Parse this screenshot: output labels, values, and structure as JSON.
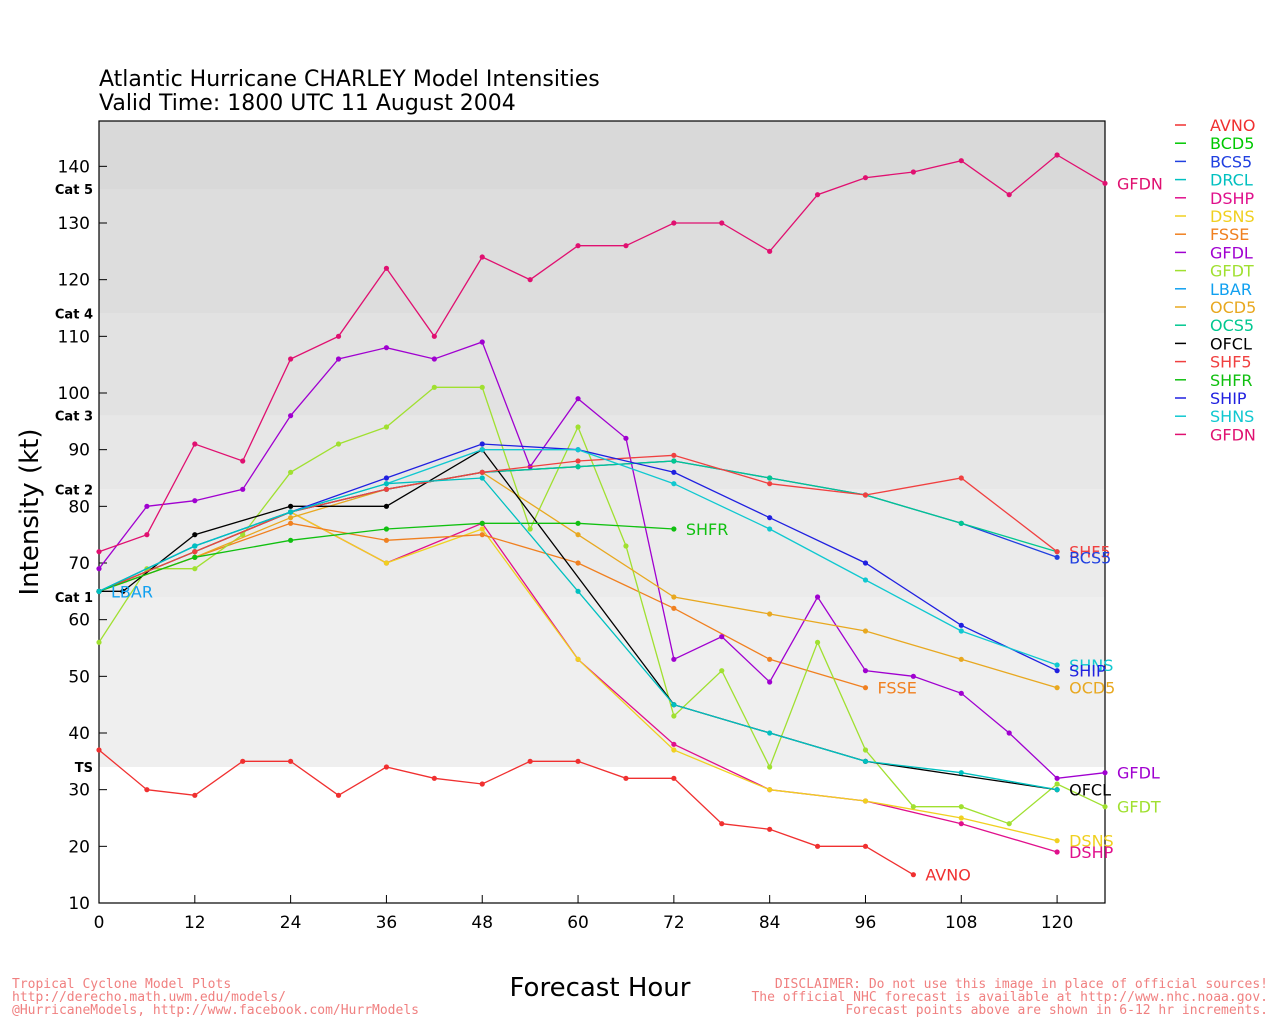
{
  "chart_data": {
    "type": "line",
    "title": "Atlantic Hurricane CHARLEY Model Intensities",
    "subtitle": "Valid Time: 1800 UTC 11 August 2004",
    "xlabel": "Forecast Hour",
    "ylabel": "Intensity (kt)",
    "xlim": [
      0,
      126
    ],
    "ylim": [
      10,
      148
    ],
    "xticks": [
      0,
      12,
      24,
      36,
      48,
      60,
      72,
      84,
      96,
      108,
      120
    ],
    "yticks": [
      10,
      20,
      30,
      40,
      50,
      60,
      70,
      80,
      90,
      100,
      110,
      120,
      130,
      140
    ],
    "legend_position": "right",
    "categories": [
      {
        "label": "TS",
        "min": 34,
        "max": 64,
        "color": "#efefef"
      },
      {
        "label": "Cat 1",
        "min": 64,
        "max": 83,
        "color": "#ebebeb"
      },
      {
        "label": "Cat 2",
        "min": 83,
        "max": 96,
        "color": "#e7e7e7"
      },
      {
        "label": "Cat 3",
        "min": 96,
        "max": 114,
        "color": "#e2e2e2"
      },
      {
        "label": "Cat 4",
        "min": 114,
        "max": 136,
        "color": "#dddddd"
      },
      {
        "label": "Cat 5",
        "min": 136,
        "max": 148,
        "color": "#d9d9d9"
      }
    ],
    "series": [
      {
        "name": "AVNO",
        "color": "#f03030",
        "points": [
          [
            0,
            37
          ],
          [
            6,
            30
          ],
          [
            12,
            29
          ],
          [
            18,
            35
          ],
          [
            24,
            35
          ],
          [
            30,
            29
          ],
          [
            36,
            34
          ],
          [
            42,
            32
          ],
          [
            48,
            31
          ],
          [
            54,
            35
          ],
          [
            60,
            35
          ],
          [
            66,
            32
          ],
          [
            72,
            32
          ],
          [
            78,
            24
          ],
          [
            84,
            23
          ],
          [
            90,
            20
          ],
          [
            96,
            20
          ],
          [
            102,
            15
          ]
        ]
      },
      {
        "name": "BCD5",
        "color": "#00c800",
        "points": []
      },
      {
        "name": "BCS5",
        "color": "#2040e0",
        "points": [
          [
            0,
            65
          ],
          [
            12,
            72
          ],
          [
            24,
            79
          ],
          [
            36,
            83
          ],
          [
            48,
            86
          ],
          [
            60,
            87
          ],
          [
            72,
            88
          ],
          [
            84,
            85
          ],
          [
            96,
            82
          ],
          [
            108,
            77
          ],
          [
            120,
            71
          ]
        ]
      },
      {
        "name": "DRCL",
        "color": "#00c0c0",
        "points": []
      },
      {
        "name": "DSHP",
        "color": "#e0108c",
        "points": [
          [
            0,
            65
          ],
          [
            12,
            72
          ],
          [
            24,
            79
          ],
          [
            36,
            70
          ],
          [
            48,
            77
          ],
          [
            60,
            53
          ],
          [
            72,
            38
          ],
          [
            84,
            30
          ],
          [
            96,
            28
          ],
          [
            108,
            24
          ],
          [
            120,
            19
          ]
        ]
      },
      {
        "name": "DSNS",
        "color": "#f0d020",
        "points": [
          [
            0,
            65
          ],
          [
            12,
            72
          ],
          [
            24,
            79
          ],
          [
            36,
            70
          ],
          [
            48,
            76
          ],
          [
            60,
            53
          ],
          [
            72,
            37
          ],
          [
            84,
            30
          ],
          [
            96,
            28
          ],
          [
            108,
            25
          ],
          [
            120,
            21
          ]
        ]
      },
      {
        "name": "FSSE",
        "color": "#f08020",
        "points": [
          [
            0,
            65
          ],
          [
            12,
            71
          ],
          [
            24,
            77
          ],
          [
            36,
            74
          ],
          [
            48,
            75
          ],
          [
            60,
            70
          ],
          [
            72,
            62
          ],
          [
            84,
            53
          ],
          [
            96,
            48
          ]
        ]
      },
      {
        "name": "GFDL",
        "color": "#a000d0",
        "points": [
          [
            0,
            69
          ],
          [
            6,
            80
          ],
          [
            12,
            81
          ],
          [
            18,
            83
          ],
          [
            24,
            96
          ],
          [
            30,
            106
          ],
          [
            36,
            108
          ],
          [
            42,
            106
          ],
          [
            48,
            109
          ],
          [
            54,
            87
          ],
          [
            60,
            99
          ],
          [
            66,
            92
          ],
          [
            72,
            53
          ],
          [
            78,
            57
          ],
          [
            84,
            49
          ],
          [
            90,
            64
          ],
          [
            96,
            51
          ],
          [
            102,
            50
          ],
          [
            108,
            47
          ],
          [
            114,
            40
          ],
          [
            120,
            32
          ],
          [
            126,
            33
          ]
        ]
      },
      {
        "name": "GFDT",
        "color": "#a0e030",
        "points": [
          [
            0,
            56
          ],
          [
            6,
            69
          ],
          [
            12,
            69
          ],
          [
            18,
            75
          ],
          [
            24,
            86
          ],
          [
            30,
            91
          ],
          [
            36,
            94
          ],
          [
            42,
            101
          ],
          [
            48,
            101
          ],
          [
            54,
            76
          ],
          [
            60,
            94
          ],
          [
            66,
            73
          ],
          [
            72,
            43
          ],
          [
            78,
            51
          ],
          [
            84,
            34
          ],
          [
            90,
            56
          ],
          [
            96,
            37
          ],
          [
            102,
            27
          ],
          [
            108,
            27
          ],
          [
            114,
            24
          ],
          [
            120,
            31
          ],
          [
            126,
            27
          ]
        ]
      },
      {
        "name": "LBAR",
        "color": "#10a0f0",
        "points": [
          [
            0,
            65
          ]
        ]
      },
      {
        "name": "OCD5",
        "color": "#e8a820",
        "points": [
          [
            0,
            65
          ],
          [
            12,
            71
          ],
          [
            24,
            78
          ],
          [
            36,
            83
          ],
          [
            48,
            86
          ],
          [
            60,
            75
          ],
          [
            72,
            64
          ],
          [
            84,
            61
          ],
          [
            96,
            58
          ],
          [
            108,
            53
          ],
          [
            120,
            48
          ]
        ]
      },
      {
        "name": "OCS5",
        "color": "#00c890",
        "points": [
          [
            0,
            65
          ],
          [
            12,
            72
          ],
          [
            24,
            79
          ],
          [
            36,
            83
          ],
          [
            48,
            86
          ],
          [
            60,
            87
          ],
          [
            72,
            88
          ],
          [
            84,
            85
          ],
          [
            96,
            82
          ],
          [
            108,
            77
          ],
          [
            120,
            72
          ]
        ]
      },
      {
        "name": "OFCL",
        "color": "#000000",
        "points": [
          [
            0,
            65
          ],
          [
            3,
            65
          ],
          [
            12,
            75
          ],
          [
            24,
            80
          ],
          [
            36,
            80
          ],
          [
            48,
            90
          ],
          [
            72,
            45
          ],
          [
            96,
            35
          ],
          [
            120,
            30
          ]
        ]
      },
      {
        "name": "SHF5",
        "color": "#f04040",
        "points": [
          [
            0,
            65
          ],
          [
            12,
            72
          ],
          [
            24,
            79
          ],
          [
            36,
            83
          ],
          [
            48,
            86
          ],
          [
            60,
            88
          ],
          [
            72,
            89
          ],
          [
            84,
            84
          ],
          [
            96,
            82
          ],
          [
            108,
            85
          ],
          [
            120,
            72
          ]
        ]
      },
      {
        "name": "SHFR",
        "color": "#10c010",
        "points": [
          [
            0,
            65
          ],
          [
            12,
            71
          ],
          [
            24,
            74
          ],
          [
            36,
            76
          ],
          [
            48,
            77
          ],
          [
            60,
            77
          ],
          [
            72,
            76
          ]
        ]
      },
      {
        "name": "SHIP",
        "color": "#2020e0",
        "points": [
          [
            0,
            65
          ],
          [
            12,
            73
          ],
          [
            24,
            79
          ],
          [
            36,
            85
          ],
          [
            48,
            91
          ],
          [
            60,
            90
          ],
          [
            72,
            86
          ],
          [
            84,
            78
          ],
          [
            96,
            70
          ],
          [
            108,
            59
          ],
          [
            120,
            51
          ]
        ]
      },
      {
        "name": "SHNS",
        "color": "#10c8d0",
        "points": [
          [
            0,
            65
          ],
          [
            12,
            73
          ],
          [
            24,
            79
          ],
          [
            36,
            84
          ],
          [
            48,
            90
          ],
          [
            60,
            90
          ],
          [
            72,
            84
          ],
          [
            84,
            76
          ],
          [
            96,
            67
          ],
          [
            108,
            58
          ],
          [
            120,
            52
          ]
        ]
      },
      {
        "name": "GFDN",
        "color": "#e01070",
        "points": [
          [
            0,
            72
          ],
          [
            6,
            75
          ],
          [
            12,
            91
          ],
          [
            18,
            88
          ],
          [
            24,
            106
          ],
          [
            30,
            110
          ],
          [
            36,
            122
          ],
          [
            42,
            110
          ],
          [
            48,
            124
          ],
          [
            54,
            120
          ],
          [
            60,
            126
          ],
          [
            66,
            126
          ],
          [
            72,
            130
          ],
          [
            78,
            130
          ],
          [
            84,
            125
          ],
          [
            90,
            135
          ],
          [
            96,
            138
          ],
          [
            102,
            139
          ],
          [
            108,
            141
          ],
          [
            114,
            135
          ],
          [
            120,
            142
          ],
          [
            126,
            137
          ]
        ]
      },
      {
        "name": "DRCL-line",
        "color": "#00c0c0",
        "points": [
          [
            0,
            65
          ],
          [
            12,
            73
          ],
          [
            24,
            79
          ],
          [
            36,
            84
          ],
          [
            48,
            85
          ],
          [
            60,
            65
          ],
          [
            72,
            45
          ],
          [
            84,
            40
          ],
          [
            96,
            35
          ],
          [
            108,
            33
          ],
          [
            120,
            30
          ]
        ]
      }
    ],
    "end_labels": [
      {
        "text": "GFDN",
        "series": "GFDN"
      },
      {
        "text": "SHFR",
        "series": "SHFR"
      },
      {
        "text": "SHF5",
        "series": "SHF5"
      },
      {
        "text": "BCS5",
        "series": "BCS5"
      },
      {
        "text": "SHNS",
        "series": "SHNS"
      },
      {
        "text": "SHIP",
        "series": "SHIP"
      },
      {
        "text": "FSSE",
        "series": "FSSE"
      },
      {
        "text": "OCD5",
        "series": "OCD5"
      },
      {
        "text": "GFDL",
        "series": "GFDL"
      },
      {
        "text": "OFCL",
        "series": "OFCL"
      },
      {
        "text": "GFDT",
        "series": "GFDT"
      },
      {
        "text": "DSNS",
        "series": "DSNS"
      },
      {
        "text": "DSHP",
        "series": "DSHP"
      },
      {
        "text": "AVNO",
        "series": "AVNO"
      },
      {
        "text": "LBAR",
        "series": "LBAR"
      }
    ],
    "legend": [
      {
        "name": "AVNO",
        "color": "#f03030"
      },
      {
        "name": "BCD5",
        "color": "#00c800"
      },
      {
        "name": "BCS5",
        "color": "#2040e0"
      },
      {
        "name": "DRCL",
        "color": "#00c0c0"
      },
      {
        "name": "DSHP",
        "color": "#e0108c"
      },
      {
        "name": "DSNS",
        "color": "#f0d020"
      },
      {
        "name": "FSSE",
        "color": "#f08020"
      },
      {
        "name": "GFDL",
        "color": "#a000d0"
      },
      {
        "name": "GFDT",
        "color": "#a0e030"
      },
      {
        "name": "LBAR",
        "color": "#10a0f0"
      },
      {
        "name": "OCD5",
        "color": "#e8a820"
      },
      {
        "name": "OCS5",
        "color": "#00c890"
      },
      {
        "name": "OFCL",
        "color": "#000000"
      },
      {
        "name": "SHF5",
        "color": "#f04040"
      },
      {
        "name": "SHFR",
        "color": "#10c010"
      },
      {
        "name": "SHIP",
        "color": "#2020e0"
      },
      {
        "name": "SHNS",
        "color": "#10c8d0"
      },
      {
        "name": "GFDN",
        "color": "#e01070"
      }
    ]
  },
  "footer": {
    "left_line1": "Tropical Cyclone Model Plots",
    "left_line2": "http://derecho.math.uwm.edu/models/",
    "left_line3": "@HurricaneModels, http://www.facebook.com/HurrModels",
    "right_line1": "DISCLAIMER: Do not use this image in place of official sources!",
    "right_line2": "The official NHC forecast is available at http://www.nhc.noaa.gov.",
    "right_line3": "Forecast points above are shown in 6-12 hr increments."
  }
}
